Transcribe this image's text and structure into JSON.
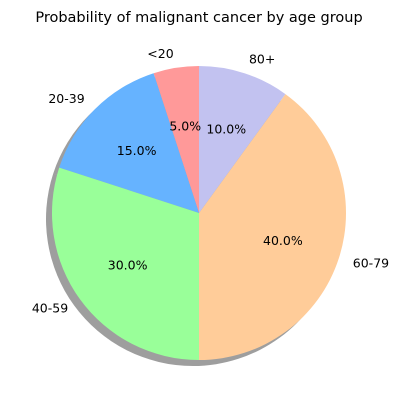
{
  "chart_data": {
    "type": "pie",
    "title": "Probability of malignant cancer by age group",
    "categories": [
      "<20",
      "20-39",
      "40-59",
      "60-79",
      "80+"
    ],
    "values": [
      5.0,
      15.0,
      30.0,
      40.0,
      10.0
    ],
    "percent_labels": [
      "5.0%",
      "15.0%",
      "30.0%",
      "40.0%",
      "10.0%"
    ],
    "colors": [
      "#ff9999",
      "#66b3ff",
      "#99ff99",
      "#ffcc99",
      "#c2c2f0"
    ],
    "start_angle_deg": 90,
    "direction": "counterclockwise",
    "shadow": true,
    "legend": "none"
  }
}
